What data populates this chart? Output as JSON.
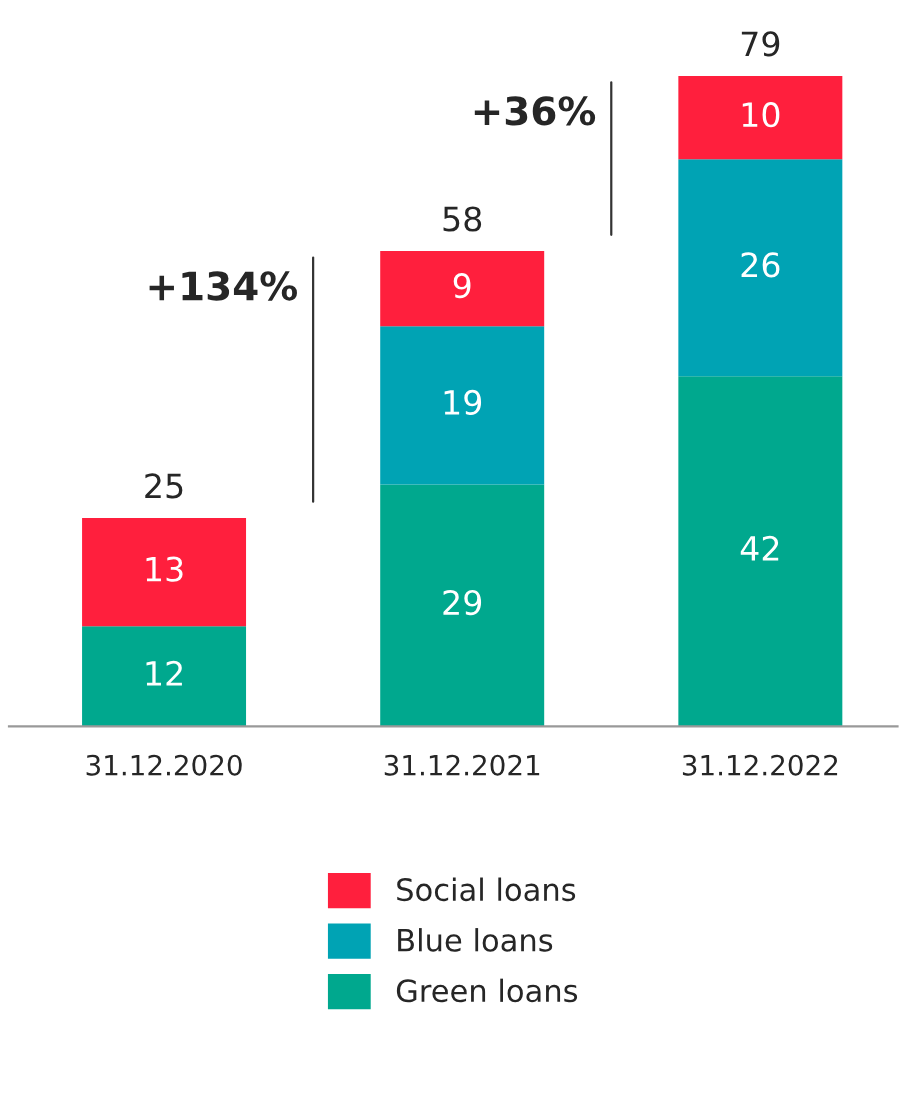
{
  "chart_data": {
    "type": "bar",
    "stacked": true,
    "categories": [
      "31.12.2020",
      "31.12.2021",
      "31.12.2022"
    ],
    "series": [
      {
        "name": "Green loans",
        "color": "#00a88e",
        "values": [
          12,
          29,
          42
        ]
      },
      {
        "name": "Blue loans",
        "color": "#00a3b4",
        "values": [
          null,
          19,
          26
        ]
      },
      {
        "name": "Social loans",
        "color": "#ff1f3d",
        "values": [
          13,
          9,
          10
        ]
      }
    ],
    "data_labels": true,
    "totals": [
      "25",
      "58",
      "79"
    ],
    "annotations": [
      "+134%",
      "+36%"
    ],
    "legend": "bottom",
    "grid": false
  }
}
